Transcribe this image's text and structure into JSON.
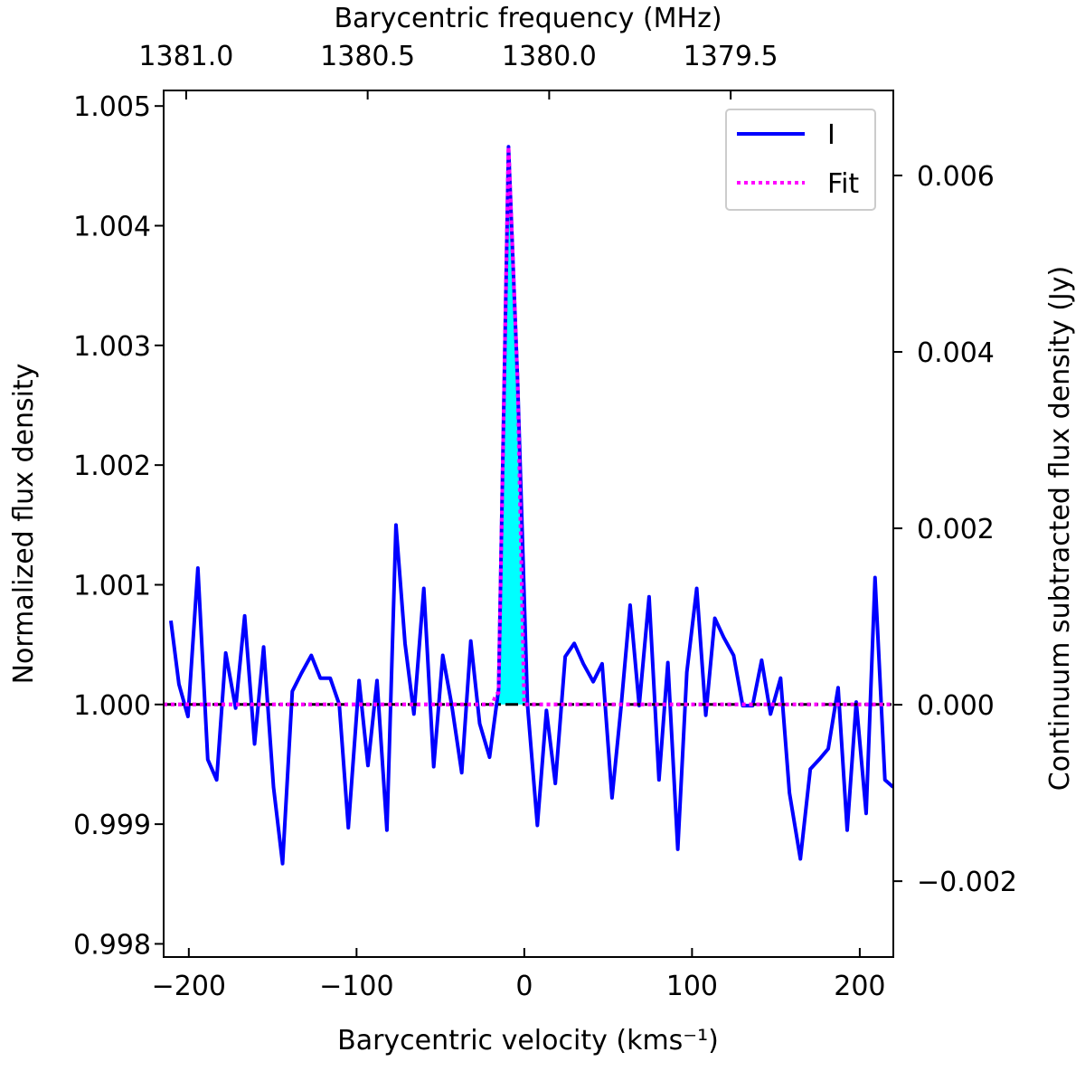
{
  "chart_data": {
    "type": "line",
    "xlabel": "Barycentric velocity (kms⁻¹)",
    "ylabel": "Normalized flux density",
    "x2label": "Barycentric frequency (MHz)",
    "y2label": "Continuum subtracted flux density (Jy)",
    "xlim": [
      -215,
      220
    ],
    "ylim": [
      0.99789,
      1.00513
    ],
    "x2lim": [
      1381.062,
      1379.052
    ],
    "y2lim": [
      -0.00286,
      0.006964
    ],
    "xticks": [
      {
        "value": -200,
        "label": "−200"
      },
      {
        "value": -100,
        "label": "−100"
      },
      0,
      100,
      200
    ],
    "yticks": [
      0.998,
      0.999,
      {
        "value": 1.0,
        "label": "1.000"
      },
      1.001,
      1.002,
      1.003,
      1.004,
      1.005
    ],
    "x2ticks": [
      {
        "value": 1381.0,
        "label": "1381.0"
      },
      1380.5,
      {
        "value": 1380.0,
        "label": "1380.0"
      },
      1379.5
    ],
    "y2ticks": [
      {
        "value": -0.002,
        "label": "−0.002"
      },
      {
        "value": 0,
        "label": "0.000"
      },
      0.002,
      0.004,
      0.006
    ],
    "legend": "upper right",
    "series": [
      {
        "name": "I",
        "color": "#0000ff",
        "x": [
          -210.7,
          -205.9,
          -200.5,
          -194.6,
          -188.7,
          -183.4,
          -178.0,
          -172.1,
          -166.7,
          -160.8,
          -155.4,
          -149.5,
          -144.1,
          -138.3,
          -132.9,
          -127.0,
          -121.6,
          -115.7,
          -110.3,
          -104.9,
          -98.5,
          -93.2,
          -87.8,
          -81.9,
          -76.5,
          -71.1,
          -65.8,
          -59.9,
          -54.0,
          -48.6,
          -43.2,
          -37.3,
          -31.9,
          -26.6,
          -20.7,
          -15.3,
          -9.4,
          -4.0,
          1.9,
          7.8,
          13.2,
          18.5,
          24.4,
          29.8,
          35.2,
          41.1,
          46.4,
          52.3,
          57.7,
          63.1,
          68.5,
          74.4,
          80.3,
          85.6,
          91.5,
          96.9,
          102.8,
          108.2,
          113.6,
          118.9,
          124.8,
          130.2,
          136.1,
          141.5,
          146.8,
          152.8,
          158.1,
          164.6,
          170.5,
          175.8,
          181.2,
          187.1,
          192.5,
          197.9,
          203.8,
          209.1,
          215.0,
          219.9
        ],
        "values": [
          1.0007,
          1.00017,
          0.9999,
          1.00114,
          0.99954,
          0.99937,
          1.00043,
          0.99997,
          1.00074,
          0.99967,
          1.00048,
          0.99931,
          0.99867,
          1.00011,
          1.00026,
          1.00041,
          1.00022,
          1.00022,
          1.0,
          0.99897,
          1.0002,
          0.99949,
          1.0002,
          0.99895,
          1.0015,
          1.00051,
          0.99992,
          1.00097,
          0.99948,
          1.00041,
          0.99999,
          0.99943,
          1.00053,
          0.99984,
          0.99956,
          1.00013,
          1.00466,
          1.00271,
          1.0,
          0.99899,
          0.99995,
          0.99934,
          1.0004,
          1.00051,
          1.00034,
          1.00019,
          1.00034,
          0.99922,
          0.99998,
          1.00083,
          0.99999,
          1.0009,
          0.99937,
          1.00035,
          0.99879,
          1.00027,
          1.00097,
          0.99991,
          1.00072,
          1.00056,
          1.00041,
          0.99999,
          0.99999,
          1.00037,
          0.99992,
          1.00022,
          0.99926,
          0.99871,
          0.99946,
          0.99954,
          0.99963,
          1.00014,
          0.99895,
          1.00002,
          0.99909,
          1.00106,
          0.99937,
          0.99931
        ]
      },
      {
        "name": "Fit",
        "color": "#ff00ff",
        "style": "dotted",
        "x": [
          -215,
          -19,
          -17,
          -15.3,
          -9.4,
          -4.0,
          0,
          220
        ],
        "values": [
          1.0,
          1.0,
          1.00008,
          1.0001,
          1.00466,
          1.0027,
          1.0,
          1.0
        ]
      }
    ],
    "fill": {
      "color": "#00ffff",
      "x": [
        -15.3,
        -9.4,
        -4.0,
        1.9
      ],
      "values": [
        1.00013,
        1.00466,
        1.00271,
        1.0
      ]
    },
    "baseline": {
      "value": 1.0,
      "color": "#000000",
      "style": "dashdot"
    }
  }
}
